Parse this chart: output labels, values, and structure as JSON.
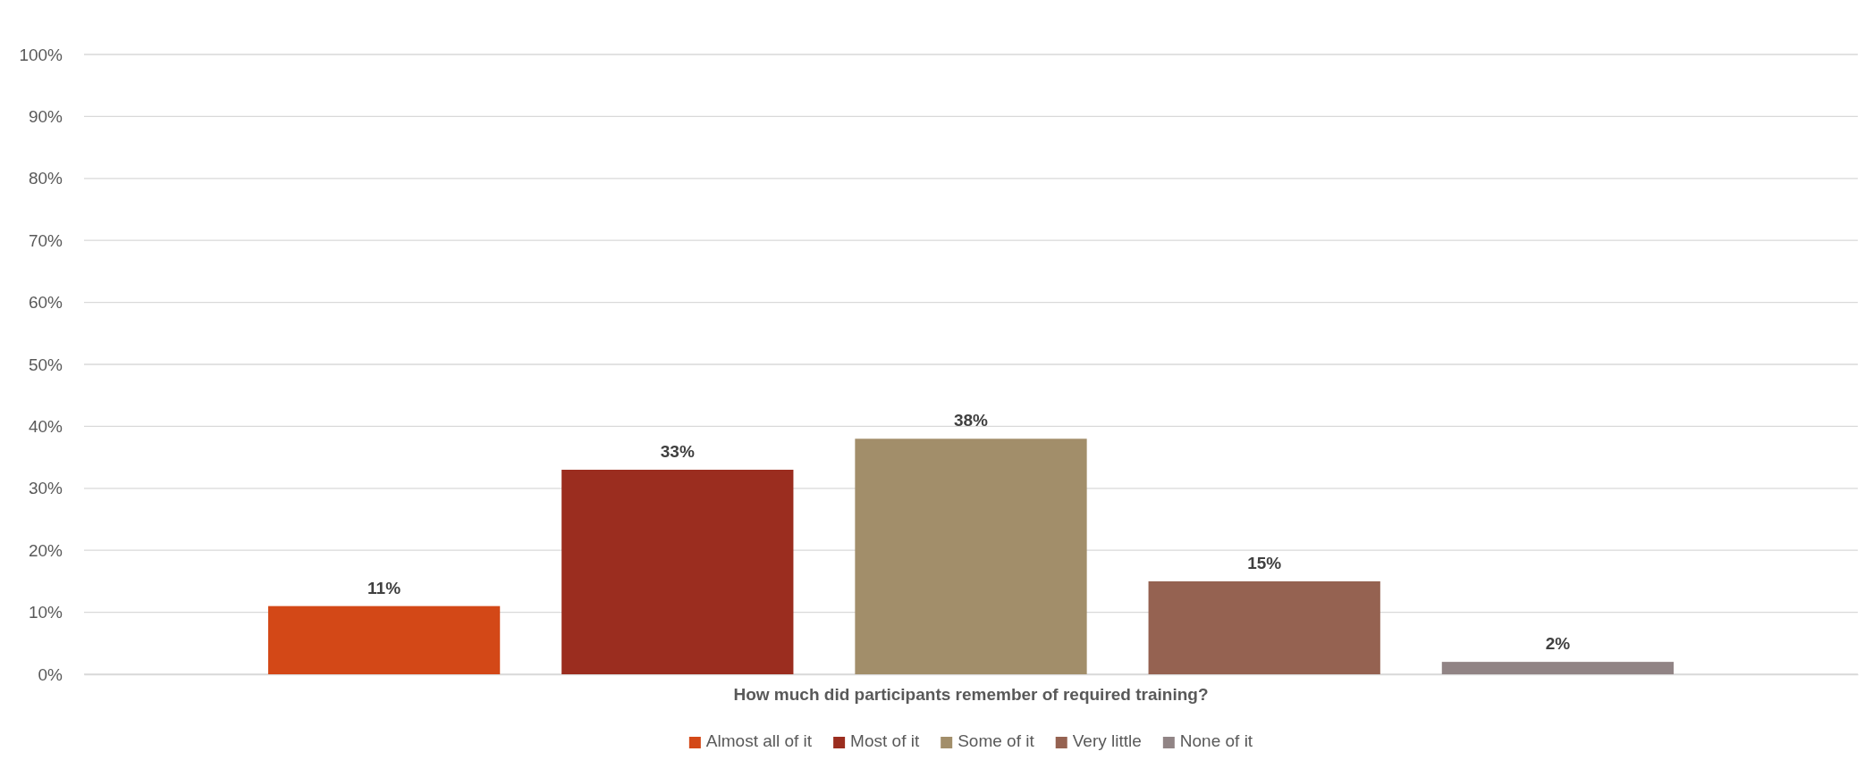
{
  "chart_data": {
    "type": "bar",
    "categories": [
      "How much did participants remember of required training?"
    ],
    "series": [
      {
        "name": "Almost all of it",
        "color": "#d34817",
        "values": [
          11
        ],
        "value_labels": [
          "11%"
        ]
      },
      {
        "name": "Most of it",
        "color": "#9b2d1f",
        "values": [
          33
        ],
        "value_labels": [
          "33%"
        ]
      },
      {
        "name": "Some of it",
        "color": "#a28e6a",
        "values": [
          38
        ],
        "value_labels": [
          "38%"
        ]
      },
      {
        "name": "Very little",
        "color": "#956251",
        "values": [
          15
        ],
        "value_labels": [
          "15%"
        ]
      },
      {
        "name": "None of it",
        "color": "#918485",
        "values": [
          2
        ],
        "value_labels": [
          "2%"
        ]
      }
    ],
    "ylim": [
      0,
      100
    ],
    "yticks": [
      {
        "value": 0,
        "label": "0%"
      },
      {
        "value": 10,
        "label": "10%"
      },
      {
        "value": 20,
        "label": "20%"
      },
      {
        "value": 30,
        "label": "30%"
      },
      {
        "value": 40,
        "label": "40%"
      },
      {
        "value": 50,
        "label": "50%"
      },
      {
        "value": 60,
        "label": "60%"
      },
      {
        "value": 70,
        "label": "70%"
      },
      {
        "value": 80,
        "label": "80%"
      },
      {
        "value": 90,
        "label": "90%"
      },
      {
        "value": 100,
        "label": "100%"
      }
    ],
    "grid": "y",
    "legend": "bottom"
  }
}
